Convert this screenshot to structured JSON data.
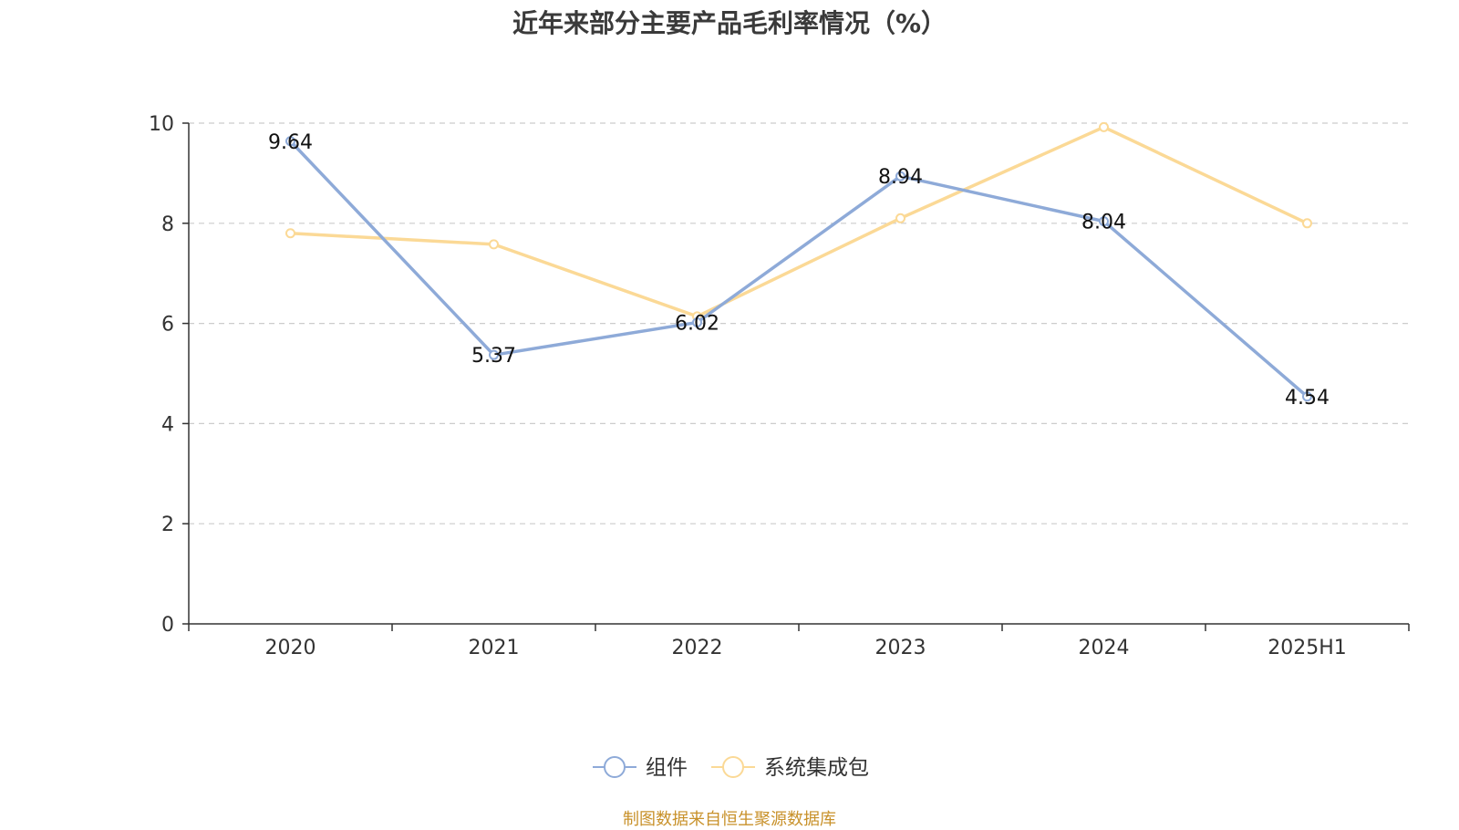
{
  "chart_data": {
    "type": "line",
    "title": "近年来部分主要产品毛利率情况（%）",
    "categories": [
      "2020",
      "2021",
      "2022",
      "2023",
      "2024",
      "2025H1"
    ],
    "series": [
      {
        "name": "组件",
        "values": [
          9.64,
          5.37,
          6.02,
          8.94,
          8.04,
          4.54
        ],
        "color": "#8eaad8",
        "labels": [
          "9.64",
          "5.37",
          "6.02",
          "8.94",
          "8.04",
          "4.54"
        ]
      },
      {
        "name": "系统集成包",
        "values": [
          7.8,
          7.58,
          6.14,
          8.1,
          9.92,
          8.0
        ],
        "color": "#fbd996"
      }
    ],
    "yticks": [
      "0",
      "2",
      "4",
      "6",
      "8",
      "10"
    ],
    "ylim": [
      0,
      10
    ],
    "grid": true,
    "legend": "bottom-center",
    "source": "制图数据来自恒生聚源数据库"
  }
}
